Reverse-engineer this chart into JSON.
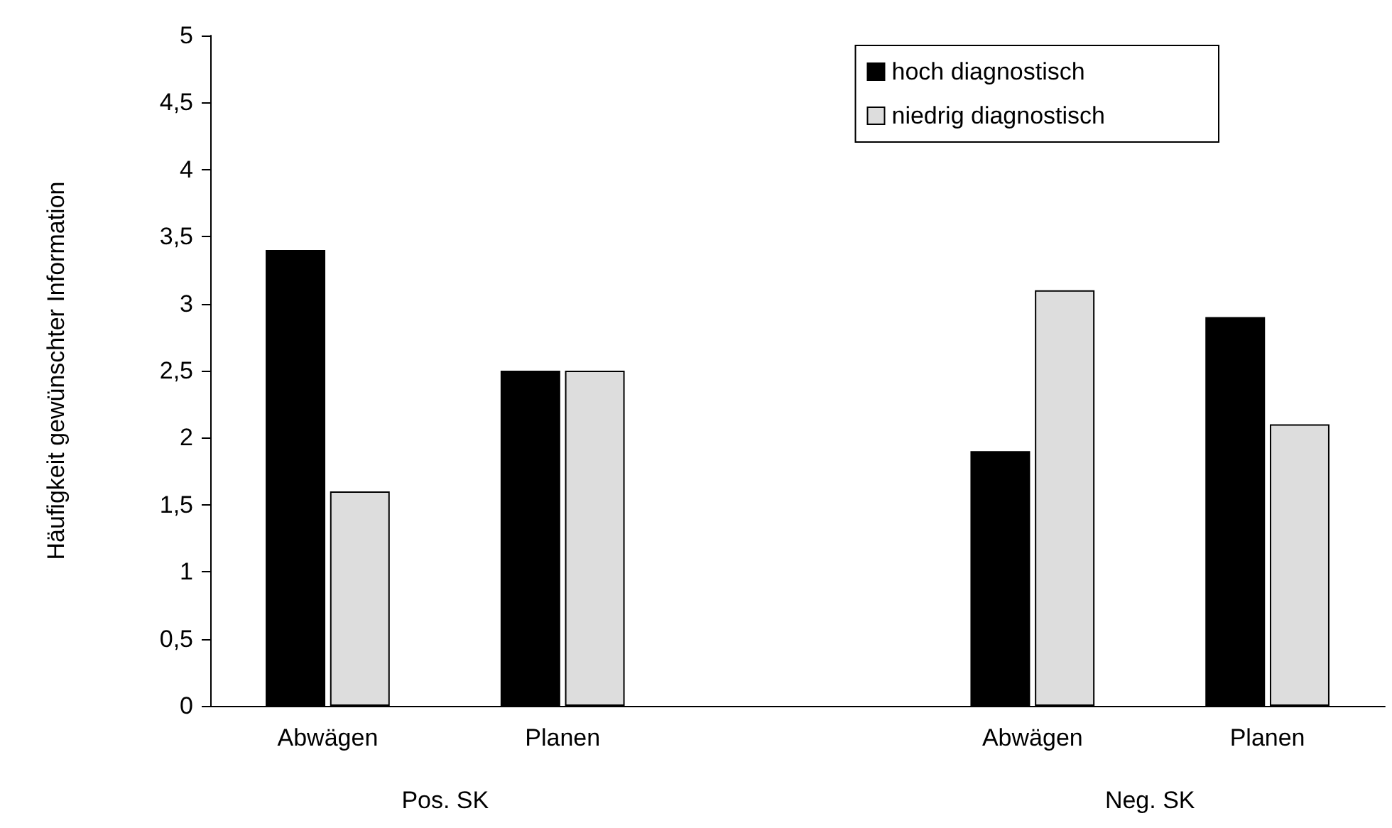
{
  "chart_data": {
    "type": "bar",
    "ylabel": "Häufigkeit gewünschter Information",
    "categories": [
      "Abwägen",
      "Planen",
      null,
      "Abwägen",
      "Planen"
    ],
    "series": [
      {
        "name": "hoch diagnostisch",
        "color": "#000000",
        "values": [
          3.4,
          2.5,
          null,
          1.9,
          2.9
        ]
      },
      {
        "name": "niedrig diagnostisch",
        "color": "#dddddd",
        "values": [
          1.6,
          2.5,
          null,
          3.1,
          2.1
        ]
      }
    ],
    "ylim": [
      0,
      5
    ],
    "yticks": [
      0,
      {
        "value": 0.5,
        "label": "0,5"
      },
      1,
      {
        "value": 1.5,
        "label": "1,5"
      },
      2,
      {
        "value": 2.5,
        "label": "2,5"
      },
      3,
      {
        "value": 3.5,
        "label": "3,5"
      },
      4,
      {
        "value": 4.5,
        "label": "4,5"
      },
      5
    ],
    "annotations": [
      "Pos. SK",
      "Neg. SK"
    ],
    "grid": false,
    "legend": "top right"
  }
}
